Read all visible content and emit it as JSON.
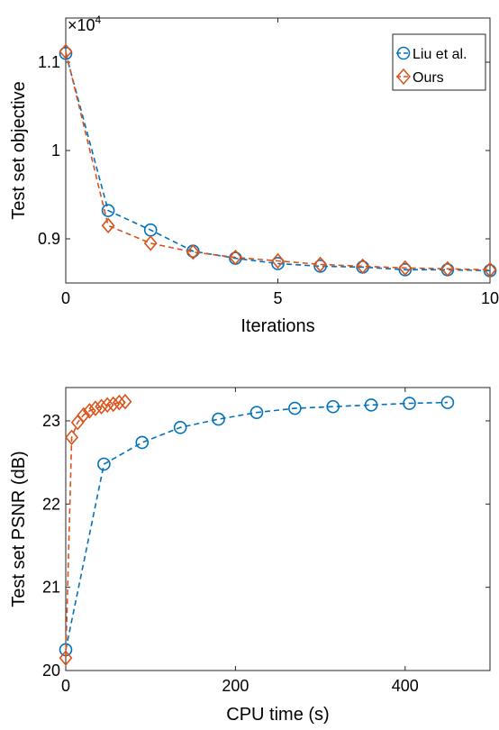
{
  "chart_data": [
    {
      "type": "line",
      "title": "",
      "xlabel": "Iterations",
      "ylabel": "Test set objective",
      "exponent_label": "×10",
      "exponent_power": "4",
      "xlim": [
        0,
        10
      ],
      "ylim": [
        0.85,
        1.15
      ],
      "xticks": [
        0,
        5,
        10
      ],
      "xtick_labels": [
        "0",
        "5",
        "10"
      ],
      "yticks": [
        0.9,
        1.0,
        1.1
      ],
      "ytick_labels": [
        "0.9",
        "1",
        "1.1"
      ],
      "grid": false,
      "legend_position": "top-right",
      "series": [
        {
          "name": "Liu et al.",
          "color": "#0072BD",
          "marker": "circle",
          "line_style": "dashed",
          "x": [
            0,
            1,
            2,
            3,
            4,
            5,
            6,
            7,
            8,
            9,
            10
          ],
          "y": [
            1.11,
            0.932,
            0.91,
            0.886,
            0.878,
            0.872,
            0.869,
            0.868,
            0.865,
            0.865,
            0.864
          ]
        },
        {
          "name": "Ours",
          "color": "#D95319",
          "marker": "diamond",
          "line_style": "dashed",
          "x": [
            0,
            1,
            2,
            3,
            4,
            5,
            6,
            7,
            8,
            9,
            10
          ],
          "y": [
            1.112,
            0.915,
            0.895,
            0.885,
            0.879,
            0.875,
            0.871,
            0.869,
            0.867,
            0.866,
            0.865
          ]
        }
      ]
    },
    {
      "type": "line",
      "title": "",
      "xlabel": "CPU time (s)",
      "ylabel": "Test set PSNR (dB)",
      "xlim": [
        0,
        500
      ],
      "ylim": [
        20,
        23.4
      ],
      "xticks": [
        0,
        200,
        400
      ],
      "xtick_labels": [
        "0",
        "200",
        "400"
      ],
      "yticks": [
        20,
        21,
        22,
        23
      ],
      "ytick_labels": [
        "20",
        "21",
        "22",
        "23"
      ],
      "grid": false,
      "series": [
        {
          "name": "Liu et al.",
          "color": "#0072BD",
          "marker": "circle",
          "line_style": "dashed",
          "x": [
            0,
            45,
            90,
            135,
            180,
            225,
            270,
            315,
            360,
            405,
            450
          ],
          "y": [
            20.25,
            22.48,
            22.74,
            22.92,
            23.02,
            23.1,
            23.15,
            23.17,
            23.19,
            23.21,
            23.22
          ]
        },
        {
          "name": "Ours",
          "color": "#D95319",
          "marker": "diamond",
          "line_style": "dashed",
          "x": [
            0,
            7,
            14,
            21,
            28,
            35,
            42,
            49,
            56,
            63,
            70
          ],
          "y": [
            20.15,
            22.8,
            22.98,
            23.07,
            23.12,
            23.15,
            23.17,
            23.19,
            23.2,
            23.22,
            23.23
          ]
        }
      ]
    }
  ]
}
